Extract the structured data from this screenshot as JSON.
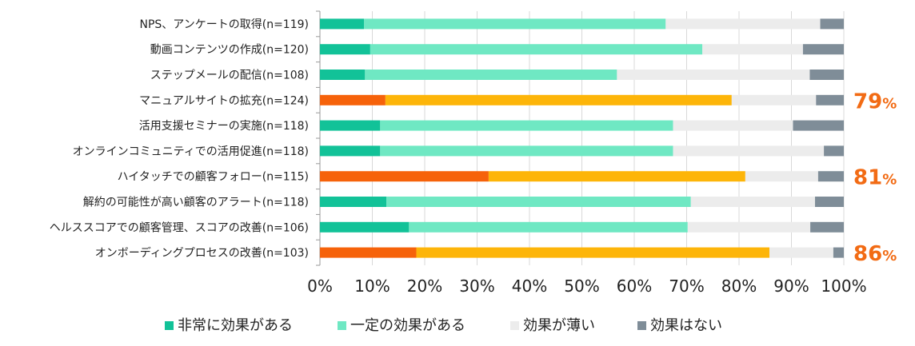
{
  "chart_data": {
    "type": "bar",
    "orientation": "horizontal",
    "stacked": "percent",
    "categories": [
      "NPS、アンケートの取得(n=119)",
      "動画コンテンツの作成(n=120)",
      "ステップメールの配信(n=108)",
      "マニュアルサイトの拡充(n=124)",
      "活用支援セミナーの実施(n=118)",
      "オンラインコミュニティでの活用促進(n=118)",
      "ハイタッチでの顧客フォロー(n=115)",
      "解約の可能性が高い顧客のアラート(n=118)",
      "ヘルススコアでの顧客管理、スコアの改善(n=106)",
      "オンボーディングプロセスの改善(n=103)"
    ],
    "series": [
      {
        "name": "非常に効果がある",
        "color": "#12c298",
        "values": [
          8.4,
          9.6,
          8.6,
          12.5,
          11.5,
          11.5,
          32.2,
          12.7,
          17.0,
          18.4
        ]
      },
      {
        "name": "一定の効果がある",
        "color": "#6fe8c3",
        "values": [
          57.6,
          63.4,
          48.1,
          66.1,
          55.9,
          55.9,
          49.0,
          58.1,
          53.2,
          67.4
        ]
      },
      {
        "name": "効果が薄い",
        "color": "#ececec",
        "values": [
          29.5,
          19.2,
          36.8,
          16.1,
          22.9,
          28.8,
          13.9,
          23.7,
          23.4,
          12.2
        ]
      },
      {
        "name": "効果はない",
        "color": "#7f8d98",
        "values": [
          4.5,
          7.8,
          6.5,
          5.3,
          9.7,
          3.8,
          4.9,
          5.5,
          6.4,
          2.0
        ]
      }
    ],
    "highlight": {
      "categories": [
        3,
        6,
        9
      ],
      "series_colors": [
        "#f6620a",
        "#fdb509",
        "#ececec",
        "#7f8d98"
      ]
    },
    "callouts": [
      {
        "category": 3,
        "value": "79",
        "unit": "%"
      },
      {
        "category": 6,
        "value": "81",
        "unit": "%"
      },
      {
        "category": 9,
        "value": "86",
        "unit": "%"
      }
    ],
    "xlim": [
      0,
      100
    ],
    "x_ticks": [
      "0%",
      "10%",
      "20%",
      "30%",
      "40%",
      "50%",
      "60%",
      "70%",
      "80%",
      "90%",
      "100%"
    ],
    "grid": true,
    "legend_position": "bottom",
    "title": "",
    "xlabel": "",
    "ylabel": ""
  }
}
